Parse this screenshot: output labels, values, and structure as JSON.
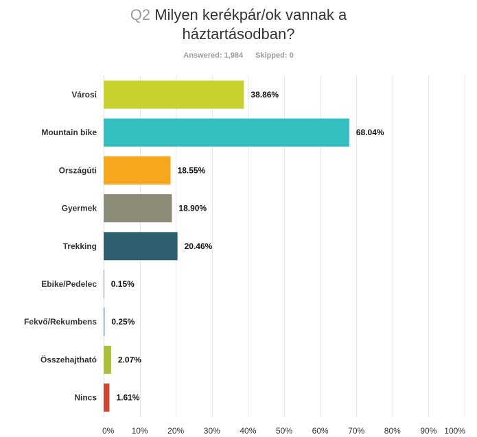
{
  "header": {
    "question_number": "Q2",
    "title_line1": "Milyen kerékpár/ok vannak a",
    "title_line2": "háztartásodban?",
    "answered": "Answered: 1,984",
    "skipped": "Skipped: 0"
  },
  "chart_data": {
    "type": "bar",
    "orientation": "horizontal",
    "title": "Milyen kerékpár/ok vannak a háztartásodban?",
    "categories": [
      "Városi",
      "Mountain bike",
      "Országúti",
      "Gyermek",
      "Trekking",
      "Ebike/Pedelec",
      "Fekvő/Rekumbens",
      "Összehajtható",
      "Nincs"
    ],
    "values": [
      38.86,
      68.04,
      18.55,
      18.9,
      20.46,
      0.15,
      0.25,
      2.07,
      1.61
    ],
    "value_labels": [
      "38.86%",
      "68.04%",
      "18.55%",
      "18.90%",
      "20.46%",
      "0.15%",
      "0.25%",
      "2.07%",
      "1.61%"
    ],
    "colors": [
      "#c8d22e",
      "#33bfbf",
      "#f5a71e",
      "#8b8b78",
      "#2e5f6e",
      "#7b5aa5",
      "#4a8ec8",
      "#a9c13a",
      "#d0462e"
    ],
    "x_ticks": [
      "0%",
      "10%",
      "20%",
      "30%",
      "40%",
      "50%",
      "60%",
      "70%",
      "80%",
      "90%",
      "100%"
    ],
    "xlim": [
      0,
      100
    ],
    "grid": true
  }
}
